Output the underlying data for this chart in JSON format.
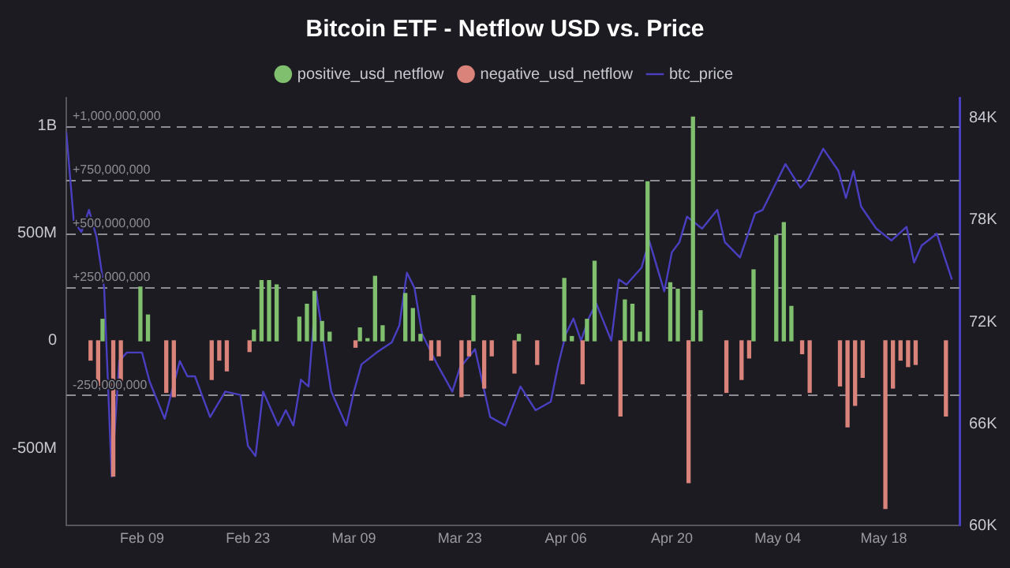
{
  "chart_data": {
    "type": "bar",
    "title": "Bitcoin ETF - Netflow USD vs. Price",
    "legend": "top",
    "grid": false,
    "xlim": [
      "--01-30",
      "--05-28"
    ],
    "xticks": [
      {
        "value": "--02-09",
        "label": "Feb 09"
      },
      {
        "value": "--02-23",
        "label": "Feb 23"
      },
      {
        "value": "--03-09",
        "label": "Mar 09"
      },
      {
        "value": "--03-23",
        "label": "Mar 23"
      },
      {
        "value": "--04-06",
        "label": "Apr 06"
      },
      {
        "value": "--04-20",
        "label": "Apr 20"
      },
      {
        "value": "--05-04",
        "label": "May 04"
      },
      {
        "value": "--05-18",
        "label": "May 18"
      }
    ],
    "ylim": [
      -860000000,
      1130000000
    ],
    "yticks": [
      {
        "value": -500000000,
        "label": "-500M"
      },
      0,
      {
        "value": 500000000,
        "label": "500M"
      },
      {
        "value": 1000000000,
        "label": "1B"
      }
    ],
    "y2lim": [
      60000,
      85200
    ],
    "y2ticks": [
      {
        "value": 60000,
        "label": "60K"
      },
      {
        "value": 66000,
        "label": "66K"
      },
      {
        "value": 72000,
        "label": "72K"
      },
      {
        "value": 78000,
        "label": "78K"
      },
      {
        "value": 84000,
        "label": "84K"
      }
    ],
    "ref_lines": [
      {
        "axis": "y",
        "value": 1000000000,
        "label": "+1,000,000,000",
        "color": "#8c8c94",
        "line_style": "dashed"
      },
      {
        "axis": "y",
        "value": 750000000,
        "label": "+750,000,000",
        "color": "#8c8c94",
        "line_style": "dashed"
      },
      {
        "axis": "y",
        "value": 500000000,
        "label": "+500,000,000",
        "color": "#8c8c94",
        "line_style": "dashed"
      },
      {
        "axis": "y",
        "value": 250000000,
        "label": "+250,000,000",
        "color": "#8c8c94",
        "line_style": "dashed"
      },
      {
        "axis": "y",
        "value": -250000000,
        "label": "-250,000,000",
        "color": "#8c8c94",
        "line_style": "dashed"
      }
    ],
    "series": [
      {
        "name": "btc_price",
        "type": "line",
        "axis": "y2",
        "color": "#4a3fc0",
        "marker": "none",
        "line_style": "solid",
        "x": [
          "--01-30",
          "--01-31",
          "--02-01",
          "--02-02",
          "--02-03",
          "--02-04",
          "--02-05",
          "--02-06",
          "--02-07",
          "--02-09",
          "--02-10",
          "--02-12",
          "--02-14",
          "--02-15",
          "--02-16",
          "--02-18",
          "--02-20",
          "--02-22",
          "--02-23",
          "--02-24",
          "--02-25",
          "--02-27",
          "--02-28",
          "--03-01",
          "--03-02",
          "--03-03",
          "--03-04",
          "--03-06",
          "--03-08",
          "--03-09",
          "--03-10",
          "--03-12",
          "--03-14",
          "--03-15",
          "--03-16",
          "--03-17",
          "--03-18",
          "--03-20",
          "--03-22",
          "--03-23",
          "--03-25",
          "--03-27",
          "--03-29",
          "--03-31",
          "--04-02",
          "--04-04",
          "--04-05",
          "--04-06",
          "--04-07",
          "--04-08",
          "--04-09",
          "--04-10",
          "--04-12",
          "--04-13",
          "--04-14",
          "--04-16",
          "--04-17",
          "--04-19",
          "--04-20",
          "--04-21",
          "--04-22",
          "--04-24",
          "--04-26",
          "--04-27",
          "--04-29",
          "--05-01",
          "--05-02",
          "--05-04",
          "--05-05",
          "--05-07",
          "--05-08",
          "--05-10",
          "--05-12",
          "--05-13",
          "--05-14",
          "--05-15",
          "--05-17",
          "--05-19",
          "--05-21",
          "--05-22",
          "--05-23",
          "--05-25",
          "--05-27"
        ],
        "values": [
          83200,
          77900,
          77300,
          78600,
          77000,
          74000,
          62900,
          69700,
          70200,
          70200,
          68500,
          66300,
          69700,
          68800,
          68800,
          66400,
          67900,
          67700,
          64700,
          64100,
          67900,
          65900,
          66800,
          65900,
          68600,
          68200,
          73800,
          67900,
          65900,
          67900,
          69500,
          70200,
          70800,
          71800,
          74900,
          74000,
          71300,
          69500,
          67900,
          69300,
          70400,
          66400,
          65900,
          68200,
          66800,
          67300,
          69500,
          71300,
          72200,
          70900,
          72200,
          73100,
          70900,
          74500,
          74200,
          75200,
          76800,
          73800,
          76100,
          76700,
          78200,
          77500,
          78600,
          76700,
          75800,
          78400,
          78600,
          80400,
          81300,
          79900,
          80400,
          82200,
          80900,
          79300,
          80900,
          78800,
          77500,
          76800,
          77600,
          75500,
          76500,
          77200,
          74500
        ]
      },
      {
        "name": "positive_usd_netflow",
        "color": "#7fbf6e",
        "x": [
          "--02-04",
          "--02-09",
          "--02-10",
          "--02-24",
          "--02-25",
          "--02-26",
          "--02-27",
          "--03-02",
          "--03-03",
          "--03-04",
          "--03-05",
          "--03-06",
          "--03-10",
          "--03-11",
          "--03-12",
          "--03-13",
          "--03-16",
          "--03-17",
          "--03-18",
          "--03-25",
          "--03-31",
          "--04-06",
          "--04-07",
          "--04-09",
          "--04-10",
          "--04-14",
          "--04-15",
          "--04-16",
          "--04-17",
          "--04-20",
          "--04-21",
          "--04-23",
          "--04-24",
          "--05-01",
          "--05-04",
          "--05-05",
          "--05-06"
        ],
        "values": [
          100000000,
          250000000,
          120000000,
          50000000,
          280000000,
          280000000,
          260000000,
          110000000,
          170000000,
          230000000,
          90000000,
          40000000,
          60000000,
          10000000,
          300000000,
          70000000,
          220000000,
          150000000,
          30000000,
          210000000,
          30000000,
          290000000,
          20000000,
          100000000,
          370000000,
          190000000,
          170000000,
          40000000,
          740000000,
          270000000,
          240000000,
          1040000000,
          140000000,
          330000000,
          490000000,
          550000000,
          160000000
        ]
      },
      {
        "name": "negative_usd_netflow",
        "color": "#d9837b",
        "x": [
          "--02-02",
          "--02-03",
          "--02-05",
          "--02-06",
          "--02-12",
          "--02-13",
          "--02-18",
          "--02-19",
          "--02-20",
          "--02-23",
          "--03-09",
          "--03-19",
          "--03-20",
          "--03-23",
          "--03-24",
          "--03-26",
          "--03-27",
          "--03-30",
          "--04-02",
          "--04-08",
          "--04-13",
          "--04-22",
          "--04-27",
          "--04-29",
          "--04-30",
          "--05-07",
          "--05-08",
          "--05-12",
          "--05-13",
          "--05-14",
          "--05-15",
          "--05-18",
          "--05-19",
          "--05-20",
          "--05-21",
          "--05-22",
          "--05-26"
        ],
        "values": [
          -90000000,
          -220000000,
          -630000000,
          -220000000,
          -240000000,
          -260000000,
          -180000000,
          -90000000,
          -140000000,
          -50000000,
          -30000000,
          -90000000,
          -70000000,
          -260000000,
          -70000000,
          -220000000,
          -70000000,
          -150000000,
          -110000000,
          -200000000,
          -350000000,
          -660000000,
          -240000000,
          -180000000,
          -80000000,
          -60000000,
          -240000000,
          -210000000,
          -400000000,
          -300000000,
          -170000000,
          -780000000,
          -220000000,
          -90000000,
          -120000000,
          -110000000,
          -350000000
        ]
      }
    ]
  }
}
